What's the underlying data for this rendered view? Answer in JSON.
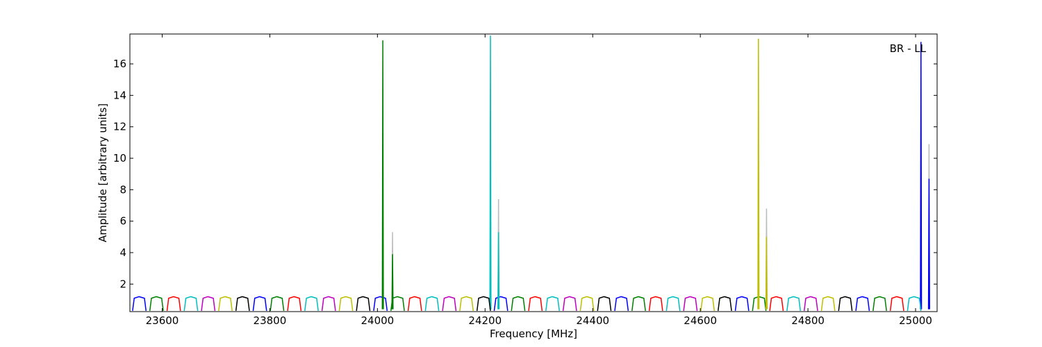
{
  "chart_data": {
    "type": "line",
    "xlabel": "Frequency [MHz]",
    "ylabel": "Amplitude [arbitrary units]",
    "annotation": "BR - LL",
    "xlim": [
      23540,
      25040
    ],
    "ylim": [
      0.25,
      17.9
    ],
    "xticks": [
      23600,
      23800,
      24000,
      24200,
      24400,
      24600,
      24800,
      25000
    ],
    "yticks": [
      2,
      4,
      6,
      8,
      10,
      12,
      14,
      16
    ],
    "grid": false,
    "series": [
      {
        "color": "#bbbbbb",
        "x": [
          24027,
          24028,
          24029,
          null,
          24224,
          24225,
          24226,
          null,
          24722,
          24723,
          24724,
          null,
          25024,
          25025,
          25026
        ],
        "values": [
          0.4,
          5.3,
          0.4,
          null,
          0.4,
          7.4,
          0.4,
          null,
          0.4,
          6.8,
          0.4,
          null,
          0.4,
          10.9,
          0.4
        ]
      },
      {
        "color": "#0000ff",
        "x": [
          23545,
          23548,
          23557,
          23567,
          23570,
          null,
          23769,
          23772,
          23781,
          23791,
          23794,
          null,
          23993,
          23996,
          24005,
          24015,
          24018,
          null,
          24217,
          24220,
          24229,
          24239,
          24242,
          null,
          24441,
          24444,
          24453,
          24463,
          24466,
          null,
          24665,
          24668,
          24677,
          24687,
          24690,
          null,
          24889,
          24892,
          24901,
          24911,
          24914,
          null,
          25009,
          25010,
          25011,
          null,
          25024,
          25025,
          25026
        ],
        "values": [
          0.3,
          1.1,
          1.2,
          1.1,
          0.3,
          null,
          0.3,
          1.1,
          1.2,
          1.1,
          0.3,
          null,
          0.3,
          1.1,
          1.2,
          1.1,
          0.3,
          null,
          0.3,
          1.1,
          1.2,
          1.1,
          0.3,
          null,
          0.3,
          1.1,
          1.2,
          1.1,
          0.3,
          null,
          0.3,
          1.1,
          1.2,
          1.1,
          0.3,
          null,
          0.3,
          1.1,
          1.2,
          1.1,
          0.3,
          null,
          0.4,
          17.4,
          0.4,
          null,
          0.4,
          8.7,
          0.4
        ]
      },
      {
        "color": "#008000",
        "x": [
          23577,
          23580,
          23589,
          23599,
          23602,
          null,
          23801,
          23804,
          23813,
          23823,
          23826,
          null,
          24025,
          24028,
          24037,
          24047,
          24050,
          null,
          24249,
          24252,
          24261,
          24271,
          24274,
          null,
          24473,
          24476,
          24485,
          24495,
          24498,
          null,
          24697,
          24700,
          24709,
          24719,
          24722,
          null,
          24921,
          24924,
          24933,
          24943,
          24946,
          null,
          24009,
          24010,
          24011,
          null,
          24027,
          24028,
          24029
        ],
        "values": [
          0.3,
          1.1,
          1.2,
          1.1,
          0.3,
          null,
          0.3,
          1.1,
          1.2,
          1.1,
          0.3,
          null,
          0.3,
          1.1,
          1.2,
          1.1,
          0.3,
          null,
          0.3,
          1.1,
          1.2,
          1.1,
          0.3,
          null,
          0.3,
          1.1,
          1.2,
          1.1,
          0.3,
          null,
          0.3,
          1.1,
          1.2,
          1.1,
          0.3,
          null,
          0.3,
          1.1,
          1.2,
          1.1,
          0.3,
          null,
          0.4,
          17.5,
          0.4,
          null,
          0.4,
          3.9,
          0.4
        ]
      },
      {
        "color": "#ff0000",
        "x": [
          23609,
          23612,
          23621,
          23631,
          23634,
          null,
          23833,
          23836,
          23845,
          23855,
          23858,
          null,
          24057,
          24060,
          24069,
          24079,
          24082,
          null,
          24281,
          24284,
          24293,
          24303,
          24306,
          null,
          24505,
          24508,
          24517,
          24527,
          24530,
          null,
          24729,
          24732,
          24741,
          24751,
          24754,
          null,
          24953,
          24956,
          24965,
          24975,
          24978
        ],
        "values": [
          0.3,
          1.1,
          1.2,
          1.1,
          0.3,
          null,
          0.3,
          1.1,
          1.2,
          1.1,
          0.3,
          null,
          0.3,
          1.1,
          1.2,
          1.1,
          0.3,
          null,
          0.3,
          1.1,
          1.2,
          1.1,
          0.3,
          null,
          0.3,
          1.1,
          1.2,
          1.1,
          0.3,
          null,
          0.3,
          1.1,
          1.2,
          1.1,
          0.3,
          null,
          0.3,
          1.1,
          1.2,
          1.1,
          0.3
        ]
      },
      {
        "color": "#00bfbf",
        "x": [
          23641,
          23644,
          23653,
          23663,
          23666,
          null,
          23865,
          23868,
          23877,
          23887,
          23890,
          null,
          24089,
          24092,
          24101,
          24111,
          24114,
          null,
          24313,
          24316,
          24325,
          24335,
          24338,
          null,
          24537,
          24540,
          24549,
          24559,
          24562,
          null,
          24761,
          24764,
          24773,
          24783,
          24786,
          null,
          24985,
          24988,
          24997,
          25007,
          25010,
          null,
          24209,
          24210,
          24211,
          null,
          24224,
          24225,
          24226
        ],
        "values": [
          0.3,
          1.1,
          1.2,
          1.1,
          0.3,
          null,
          0.3,
          1.1,
          1.2,
          1.1,
          0.3,
          null,
          0.3,
          1.1,
          1.2,
          1.1,
          0.3,
          null,
          0.3,
          1.1,
          1.2,
          1.1,
          0.3,
          null,
          0.3,
          1.1,
          1.2,
          1.1,
          0.3,
          null,
          0.3,
          1.1,
          1.2,
          1.1,
          0.3,
          null,
          0.3,
          1.1,
          1.2,
          1.1,
          0.3,
          null,
          0.4,
          17.8,
          0.4,
          null,
          0.4,
          5.3,
          0.4
        ]
      },
      {
        "color": "#bf00bf",
        "x": [
          23673,
          23676,
          23685,
          23695,
          23698,
          null,
          23897,
          23900,
          23909,
          23919,
          23922,
          null,
          24121,
          24124,
          24133,
          24143,
          24146,
          null,
          24345,
          24348,
          24357,
          24367,
          24370,
          null,
          24569,
          24572,
          24581,
          24591,
          24594,
          null,
          24793,
          24796,
          24805,
          24815,
          24818
        ],
        "values": [
          0.3,
          1.1,
          1.2,
          1.1,
          0.3,
          null,
          0.3,
          1.1,
          1.2,
          1.1,
          0.3,
          null,
          0.3,
          1.1,
          1.2,
          1.1,
          0.3,
          null,
          0.3,
          1.1,
          1.2,
          1.1,
          0.3,
          null,
          0.3,
          1.1,
          1.2,
          1.1,
          0.3,
          null,
          0.3,
          1.1,
          1.2,
          1.1,
          0.3
        ]
      },
      {
        "color": "#bfbf00",
        "x": [
          23705,
          23708,
          23717,
          23727,
          23730,
          null,
          23929,
          23932,
          23941,
          23951,
          23954,
          null,
          24153,
          24156,
          24165,
          24175,
          24178,
          null,
          24377,
          24380,
          24389,
          24399,
          24402,
          null,
          24601,
          24604,
          24613,
          24623,
          24626,
          null,
          24825,
          24828,
          24837,
          24847,
          24850,
          null,
          24707,
          24708,
          24709,
          null,
          24722,
          24723,
          24724
        ],
        "values": [
          0.3,
          1.1,
          1.2,
          1.1,
          0.3,
          null,
          0.3,
          1.1,
          1.2,
          1.1,
          0.3,
          null,
          0.3,
          1.1,
          1.2,
          1.1,
          0.3,
          null,
          0.3,
          1.1,
          1.2,
          1.1,
          0.3,
          null,
          0.3,
          1.1,
          1.2,
          1.1,
          0.3,
          null,
          0.3,
          1.1,
          1.2,
          1.1,
          0.3,
          null,
          0.4,
          17.6,
          0.4,
          null,
          0.4,
          5.0,
          0.4
        ]
      },
      {
        "color": "#000000",
        "x": [
          23737,
          23740,
          23749,
          23759,
          23762,
          null,
          23961,
          23964,
          23973,
          23983,
          23986,
          null,
          24185,
          24188,
          24197,
          24207,
          24210,
          null,
          24409,
          24412,
          24421,
          24431,
          24434,
          null,
          24633,
          24636,
          24645,
          24655,
          24658,
          null,
          24857,
          24860,
          24869,
          24879,
          24882
        ],
        "values": [
          0.3,
          1.1,
          1.2,
          1.1,
          0.3,
          null,
          0.3,
          1.1,
          1.2,
          1.1,
          0.3,
          null,
          0.3,
          1.1,
          1.2,
          1.1,
          0.3,
          null,
          0.3,
          1.1,
          1.2,
          1.1,
          0.3,
          null,
          0.3,
          1.1,
          1.2,
          1.1,
          0.3,
          null,
          0.3,
          1.1,
          1.2,
          1.1,
          0.3
        ]
      }
    ]
  }
}
